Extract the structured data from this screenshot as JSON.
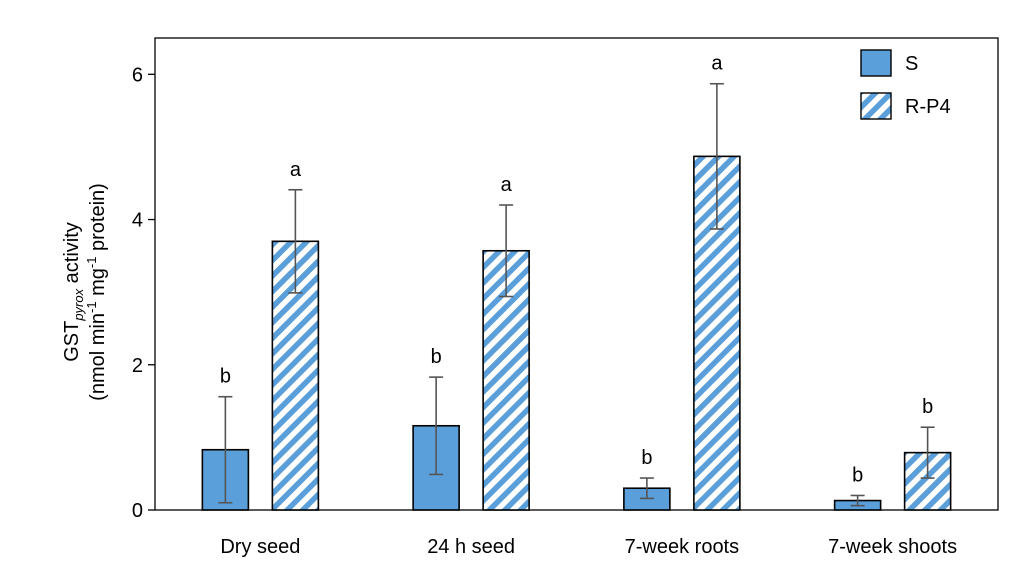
{
  "chart_data": {
    "type": "bar",
    "categories": [
      "Dry seed",
      "24 h seed",
      "7-week roots",
      "7-week shoots"
    ],
    "series": [
      {
        "name": "S",
        "values": [
          0.83,
          1.16,
          0.3,
          0.13
        ],
        "errors": [
          0.73,
          0.67,
          0.14,
          0.07
        ],
        "letters": [
          "b",
          "b",
          "b",
          "b"
        ],
        "fill": "solid",
        "color": "#5a9fd9"
      },
      {
        "name": "R-P4",
        "values": [
          3.7,
          3.57,
          4.87,
          0.79
        ],
        "errors": [
          0.71,
          0.63,
          1.0,
          0.35
        ],
        "letters": [
          "a",
          "a",
          "a",
          "b"
        ],
        "fill": "hatched",
        "color": "#5a9fd9"
      }
    ],
    "ylabel": {
      "line1_main": "GST",
      "line1_sub": "pyrox",
      "line1_rest": " activity",
      "line2_a": "(nmol min",
      "line2_sup1": "-1",
      "line2_b": " mg",
      "line2_sup2": "-1",
      "line2_c": " protein)"
    },
    "xlabel": "",
    "ylim": [
      0,
      6.5
    ],
    "yticks": [
      "0",
      "2",
      "4",
      "6"
    ],
    "legend_position": "top-right",
    "grid": false
  }
}
